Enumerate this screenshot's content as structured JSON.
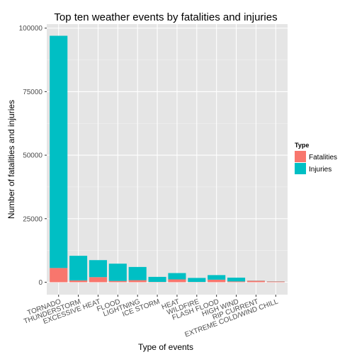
{
  "chart_data": {
    "type": "bar",
    "stacked": true,
    "title": "Top ten weather events by fatalities and injuries",
    "xlabel": "Type of events",
    "ylabel": "Number of fatalities and injuries",
    "categories": [
      "TORNADO",
      "THUNDERSTORM",
      "EXCESSIVE HEAT",
      "FLOOD",
      "LIGHTNING",
      "ICE STORM",
      "HEAT",
      "WILDFIRE",
      "FLASH FLOOD",
      "HIGH WIND",
      "RIP CURRENT",
      "EXTREME COLD/WIND CHILL"
    ],
    "series": [
      {
        "name": "Fatalities",
        "color": "#F8766D",
        "values": [
          5600,
          700,
          2000,
          500,
          800,
          100,
          1100,
          90,
          1000,
          300,
          580,
          300
        ]
      },
      {
        "name": "Injuries",
        "color": "#00BFC4",
        "values": [
          91400,
          9700,
          6700,
          6800,
          5200,
          2000,
          2500,
          1600,
          1800,
          1500,
          50,
          50
        ]
      }
    ],
    "ylim": [
      -4900,
      101600
    ],
    "yticks": [
      0,
      25000,
      50000,
      75000,
      100000
    ],
    "ytick_labels": [
      "0",
      "25000",
      "50000",
      "75000",
      "100000"
    ],
    "grid": true,
    "legend": {
      "title": "Type",
      "position": "right"
    }
  }
}
